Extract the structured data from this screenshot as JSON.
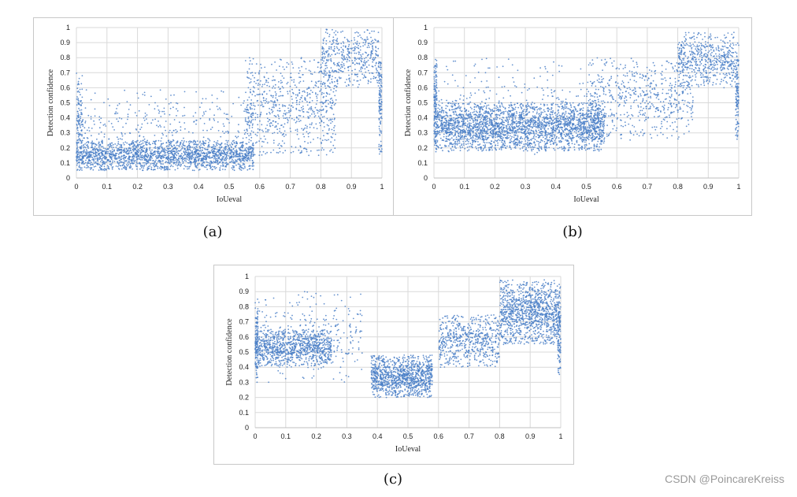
{
  "watermark": "CSDN @PoincareKreiss",
  "captions": {
    "a": "(a)",
    "b": "(b)",
    "c": "(c)"
  },
  "chart_data": [
    {
      "type": "scatter",
      "panel": "a",
      "xlabel": "IoUeval",
      "ylabel": "Detection confidence",
      "xlim": [
        0,
        1
      ],
      "ylim": [
        0,
        1
      ],
      "xticks": [
        "0",
        "0.1",
        "0.2",
        "0.3",
        "0.4",
        "0.5",
        "0.6",
        "0.7",
        "0.8",
        "0.9",
        "1"
      ],
      "yticks": [
        "0",
        "0.1",
        "0.2",
        "0.3",
        "0.4",
        "0.5",
        "0.6",
        "0.7",
        "0.8",
        "0.9",
        "1"
      ],
      "grid": true,
      "color": "#4a7fc7",
      "clusters": [
        {
          "x": [
            0.0,
            0.58
          ],
          "y": [
            0.05,
            0.25
          ],
          "n": 1900
        },
        {
          "x": [
            0.0,
            0.58
          ],
          "y": [
            0.05,
            0.6
          ],
          "n": 400
        },
        {
          "x": [
            0.55,
            0.85
          ],
          "y": [
            0.15,
            0.8
          ],
          "n": 700
        },
        {
          "x": [
            0.8,
            0.99
          ],
          "y": [
            0.6,
            0.99
          ],
          "n": 450
        },
        {
          "x": [
            0.0,
            0.02
          ],
          "y": [
            0.05,
            0.7
          ],
          "n": 120
        },
        {
          "x": [
            0.99,
            1.0
          ],
          "y": [
            0.15,
            0.8
          ],
          "n": 120
        }
      ]
    },
    {
      "type": "scatter",
      "panel": "b",
      "xlabel": "IoUeval",
      "ylabel": "Detection confidence",
      "xlim": [
        0,
        1
      ],
      "ylim": [
        0,
        1
      ],
      "xticks": [
        "0",
        "0.1",
        "0.2",
        "0.3",
        "0.4",
        "0.5",
        "0.6",
        "0.7",
        "0.8",
        "0.9",
        "1"
      ],
      "yticks": [
        "0",
        "0.1",
        "0.2",
        "0.3",
        "0.4",
        "0.5",
        "0.6",
        "0.7",
        "0.8",
        "0.9",
        "1"
      ],
      "grid": true,
      "color": "#4a7fc7",
      "clusters": [
        {
          "x": [
            0.0,
            0.56
          ],
          "y": [
            0.18,
            0.5
          ],
          "n": 2600
        },
        {
          "x": [
            0.0,
            0.56
          ],
          "y": [
            0.15,
            0.8
          ],
          "n": 300
        },
        {
          "x": [
            0.5,
            0.85
          ],
          "y": [
            0.25,
            0.8
          ],
          "n": 600
        },
        {
          "x": [
            0.8,
            0.99
          ],
          "y": [
            0.6,
            0.97
          ],
          "n": 550
        },
        {
          "x": [
            0.0,
            0.01
          ],
          "y": [
            0.2,
            0.8
          ],
          "n": 120
        },
        {
          "x": [
            0.99,
            1.0
          ],
          "y": [
            0.25,
            0.9
          ],
          "n": 120
        }
      ]
    },
    {
      "type": "scatter",
      "panel": "c",
      "xlabel": "IoUeval",
      "ylabel": "Detection confidence",
      "xlim": [
        0,
        1
      ],
      "ylim": [
        0,
        1
      ],
      "xticks": [
        "0",
        "0.1",
        "0.2",
        "0.3",
        "0.4",
        "0.5",
        "0.6",
        "0.7",
        "0.8",
        "0.9",
        "1"
      ],
      "yticks": [
        "0",
        "0.1",
        "0.2",
        "0.3",
        "0.4",
        "0.5",
        "0.6",
        "0.7",
        "0.8",
        "0.9",
        "1"
      ],
      "grid": true,
      "color": "#4a7fc7",
      "clusters": [
        {
          "x": [
            0.0,
            0.25
          ],
          "y": [
            0.4,
            0.65
          ],
          "n": 900
        },
        {
          "x": [
            0.0,
            0.35
          ],
          "y": [
            0.3,
            0.9
          ],
          "n": 300
        },
        {
          "x": [
            0.38,
            0.58
          ],
          "y": [
            0.2,
            0.48
          ],
          "n": 1100
        },
        {
          "x": [
            0.6,
            0.8
          ],
          "y": [
            0.4,
            0.75
          ],
          "n": 600
        },
        {
          "x": [
            0.8,
            0.99
          ],
          "y": [
            0.55,
            0.98
          ],
          "n": 1100
        },
        {
          "x": [
            0.0,
            0.01
          ],
          "y": [
            0.3,
            0.85
          ],
          "n": 100
        },
        {
          "x": [
            0.99,
            1.0
          ],
          "y": [
            0.35,
            0.95
          ],
          "n": 140
        }
      ]
    }
  ]
}
